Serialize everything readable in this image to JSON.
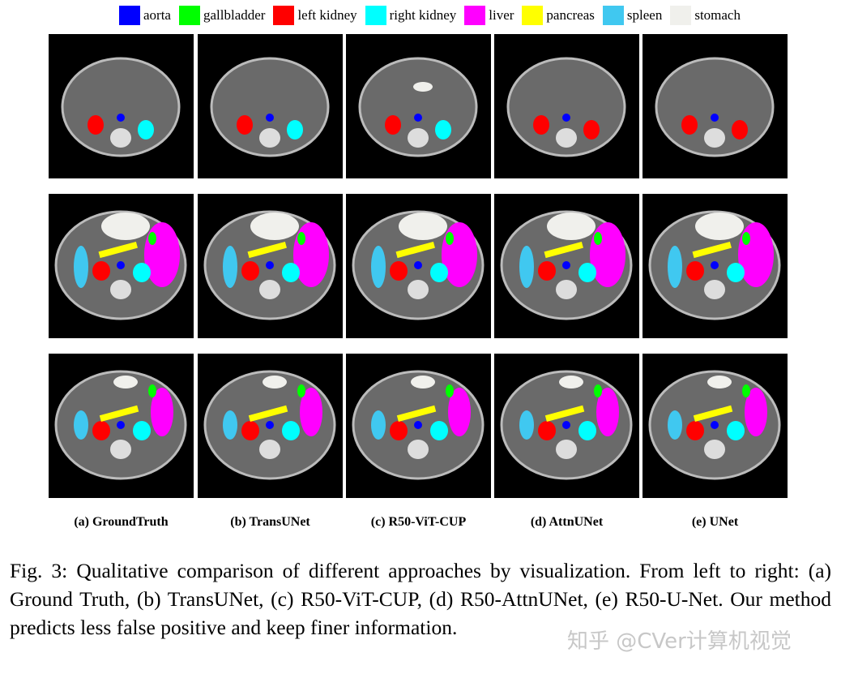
{
  "legend": [
    {
      "label": "aorta",
      "color": "#0000ff"
    },
    {
      "label": "gallbladder",
      "color": "#00ff00"
    },
    {
      "label": "left kidney",
      "color": "#ff0000"
    },
    {
      "label": "right kidney",
      "color": "#00ffff"
    },
    {
      "label": "liver",
      "color": "#ff00ff"
    },
    {
      "label": "pancreas",
      "color": "#ffff00"
    },
    {
      "label": "spleen",
      "color": "#40c8f0"
    },
    {
      "label": "stomach",
      "color": "#f0f0ec"
    }
  ],
  "columns": [
    "(a) GroundTruth",
    "(b) TransUNet",
    "(c) R50-ViT-CUP",
    "(d) AttnUNet",
    "(e) UNet"
  ],
  "caption": {
    "label": "Fig. 3:",
    "text": "Qualitative comparison of different approaches by visualization. From left to right: (a) Ground Truth, (b) TransUNet, (c) R50-ViT-CUP, (d) R50-AttnUNet, (e) R50-U-Net. Our method predicts less false positive and keep finer information."
  },
  "watermark": "知乎 @CVer计算机视觉"
}
